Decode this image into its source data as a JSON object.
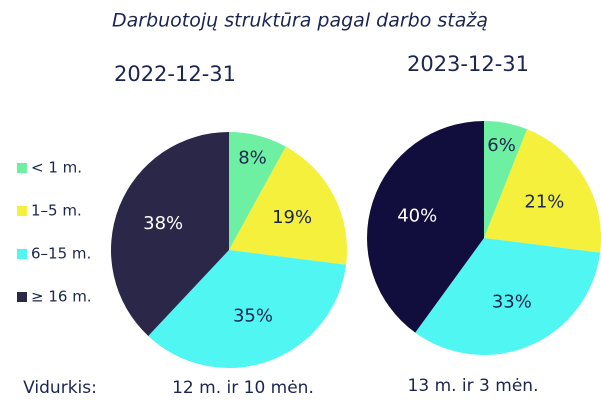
{
  "title": "Darbuotojų struktūra pagal darbo stažą",
  "footer_label": "Vidurkis:",
  "chart_data": [
    {
      "type": "pie",
      "title": "2022-12-31",
      "categories": [
        "< 1 m.",
        "1–5 m.",
        "6–15 m.",
        "≥ 16 m."
      ],
      "values": [
        8,
        19,
        35,
        38
      ],
      "value_labels": [
        "8%",
        "19%",
        "35%",
        "38%"
      ],
      "colors": [
        "#6ef0a2",
        "#f5f03c",
        "#4ff6f2",
        "#2b2748"
      ],
      "annotation": "12 m. ir 10 mėn."
    },
    {
      "type": "pie",
      "title": "2023-12-31",
      "categories": [
        "< 1 m.",
        "1–5 m.",
        "6–15 m.",
        "≥ 16 m."
      ],
      "values": [
        6,
        21,
        33,
        40
      ],
      "value_labels": [
        "6%",
        "21%",
        "33%",
        "40%"
      ],
      "colors": [
        "#6ef0a2",
        "#f5f03c",
        "#4ff6f2",
        "#110d3c"
      ],
      "annotation": "13 m. ir 3 mėn."
    }
  ]
}
